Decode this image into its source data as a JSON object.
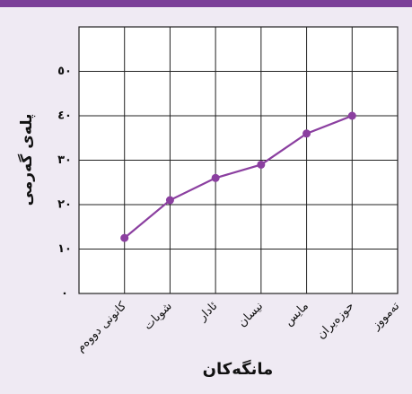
{
  "chart_data": {
    "type": "line",
    "xlabel": "مانگەکان",
    "ylabel": "پلەی گەرمی",
    "categories": [
      "كانونی دووەم",
      "شوبات",
      "ئادار",
      "نیسان",
      "مایس",
      "حوزەیران",
      "تەمووز"
    ],
    "series": [
      {
        "name": "پلەی گەرمی",
        "color": "#8b3fa0",
        "values": [
          12.5,
          21,
          26,
          29,
          36,
          40,
          null
        ]
      }
    ],
    "ylim": [
      0,
      60
    ],
    "yticks": [
      {
        "value": 0,
        "label": "٠"
      },
      {
        "value": 10,
        "label": "١٠"
      },
      {
        "value": 20,
        "label": "٢٠"
      },
      {
        "value": 30,
        "label": "٣٠"
      },
      {
        "value": 40,
        "label": "٤٠"
      },
      {
        "value": 50,
        "label": "٥٠"
      }
    ],
    "grid": true
  }
}
